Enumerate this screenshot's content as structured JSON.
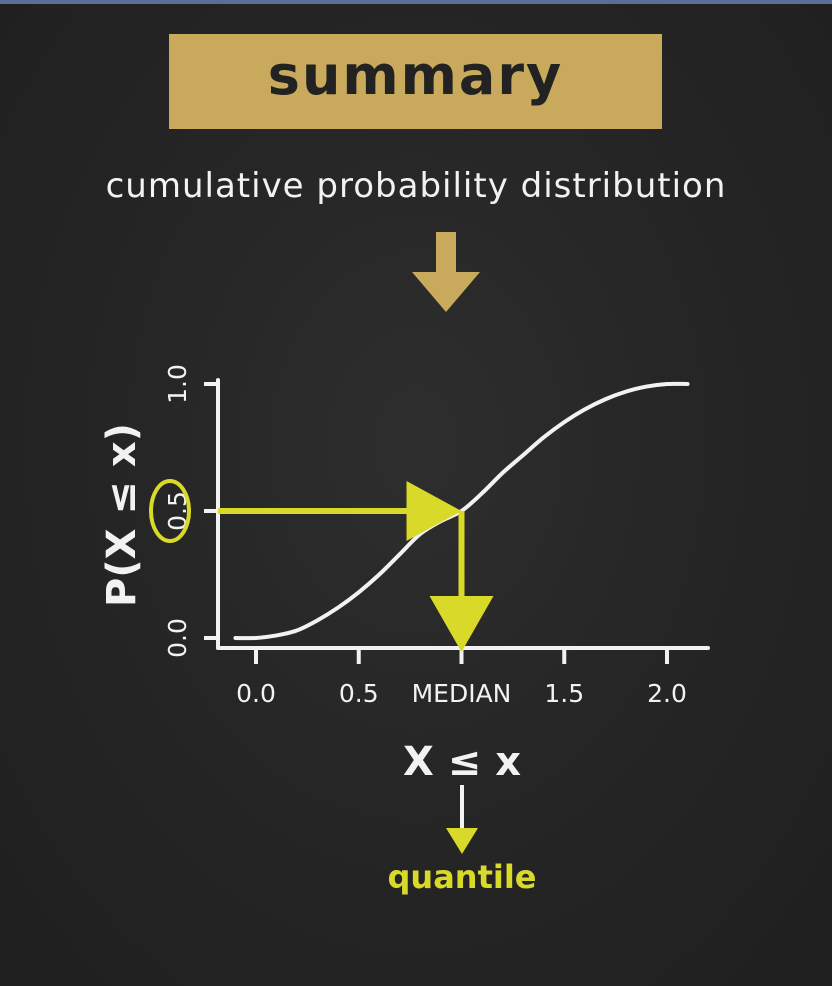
{
  "header": {
    "title": "summary",
    "subtitle": "cumulative probability distribution"
  },
  "colors": {
    "background": "#262626",
    "banner": "#c9aa5c",
    "arrow_gold": "#c9aa5c",
    "highlight": "#d9d92a",
    "chalk": "#f2f2f2"
  },
  "chart_data": {
    "type": "line",
    "title": "",
    "xlabel": "X ≤ x",
    "ylabel": "P(X ≤ x)",
    "xlim": [
      -0.15,
      2.15
    ],
    "ylim": [
      0.0,
      1.0
    ],
    "x_ticks": [
      {
        "value": 0.0,
        "label": "0.0"
      },
      {
        "value": 0.5,
        "label": "0.5"
      },
      {
        "value": 1.0,
        "label": "MEDIAN"
      },
      {
        "value": 1.5,
        "label": "1.5"
      },
      {
        "value": 2.0,
        "label": "2.0"
      }
    ],
    "y_ticks": [
      {
        "value": 0.0,
        "label": "0.0"
      },
      {
        "value": 0.5,
        "label": "0.5"
      },
      {
        "value": 1.0,
        "label": "1.0"
      }
    ],
    "series": [
      {
        "x": [
          -0.1,
          0.0,
          0.1,
          0.2,
          0.3,
          0.4,
          0.5,
          0.6,
          0.7,
          0.8,
          0.9,
          1.0,
          1.1,
          1.2,
          1.3,
          1.4,
          1.5,
          1.6,
          1.7,
          1.8,
          1.9,
          2.0,
          2.1
        ],
        "y": [
          0.0,
          0.0,
          0.01,
          0.03,
          0.07,
          0.12,
          0.18,
          0.25,
          0.33,
          0.41,
          0.46,
          0.5,
          0.57,
          0.65,
          0.72,
          0.79,
          0.85,
          0.9,
          0.94,
          0.97,
          0.99,
          1.0,
          1.0
        ]
      }
    ],
    "highlight": {
      "y": 0.5,
      "x": 1.0,
      "circled_tick": "0.5"
    },
    "annotation": {
      "label": "quantile"
    },
    "grid": false,
    "legend": "none"
  }
}
